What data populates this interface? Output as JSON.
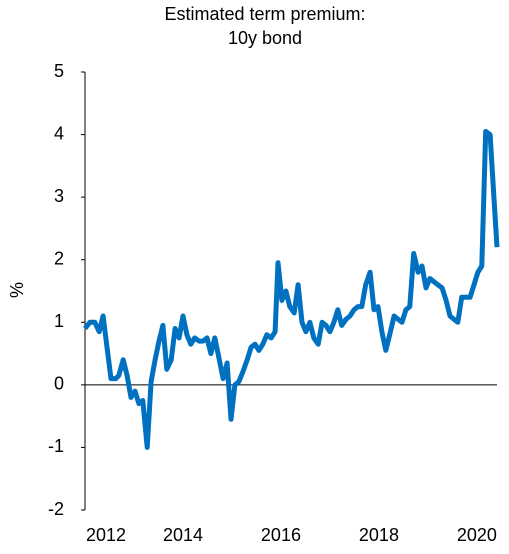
{
  "chart_data": {
    "type": "line",
    "title": [
      "Estimated term premium:",
      "10y bond"
    ],
    "y_label": "%",
    "x": [
      2012,
      2012.1,
      2012.2,
      2012.29,
      2012.37,
      2012.45,
      2012.53,
      2012.63,
      2012.69,
      2012.78,
      2012.86,
      2012.94,
      2013.02,
      2013.1,
      2013.18,
      2013.27,
      2013.35,
      2013.43,
      2013.51,
      2013.59,
      2013.67,
      2013.76,
      2013.84,
      2013.92,
      2014.0,
      2014.08,
      2014.16,
      2014.24,
      2014.33,
      2014.41,
      2014.49,
      2014.57,
      2014.65,
      2014.73,
      2014.82,
      2014.9,
      2014.98,
      2015.06,
      2015.14,
      2015.22,
      2015.31,
      2015.39,
      2015.47,
      2015.55,
      2015.63,
      2015.71,
      2015.8,
      2015.88,
      2015.94,
      2016.02,
      2016.1,
      2016.18,
      2016.27,
      2016.35,
      2016.43,
      2016.51,
      2016.59,
      2016.67,
      2016.76,
      2016.84,
      2016.92,
      2017.0,
      2017.08,
      2017.16,
      2017.24,
      2017.33,
      2017.41,
      2017.49,
      2017.57,
      2017.65,
      2017.73,
      2017.82,
      2017.9,
      2017.98,
      2018.06,
      2018.14,
      2018.22,
      2018.31,
      2018.39,
      2018.47,
      2018.55,
      2018.63,
      2018.71,
      2018.8,
      2018.88,
      2018.96,
      2019.04,
      2019.12,
      2019.2,
      2019.29,
      2019.37,
      2019.45,
      2019.53,
      2019.61,
      2019.69,
      2019.78,
      2019.86,
      2019.94,
      2020.02,
      2020.1,
      2020.18,
      2020.27,
      2020.35,
      2020.41
    ],
    "series": [
      {
        "name": "Estimated term premium",
        "color": "#0070c0",
        "values": [
          0.9,
          1.0,
          1.0,
          0.85,
          1.1,
          0.6,
          0.1,
          0.1,
          0.15,
          0.4,
          0.15,
          -0.2,
          -0.1,
          -0.3,
          -0.25,
          -1.0,
          0.05,
          0.4,
          0.7,
          0.95,
          0.25,
          0.4,
          0.9,
          0.75,
          1.1,
          0.8,
          0.65,
          0.75,
          0.7,
          0.7,
          0.75,
          0.5,
          0.75,
          0.45,
          0.1,
          0.35,
          -0.55,
          0,
          0.05,
          0.2,
          0.4,
          0.6,
          0.65,
          0.55,
          0.65,
          0.8,
          0.75,
          0.85,
          1.95,
          1.35,
          1.5,
          1.25,
          1.15,
          1.6,
          1.0,
          0.85,
          1.0,
          0.75,
          0.65,
          1.0,
          0.95,
          0.85,
          1.0,
          1.2,
          0.95,
          1.05,
          1.1,
          1.2,
          1.25,
          1.25,
          1.6,
          1.8,
          1.2,
          1.25,
          0.85,
          0.55,
          0.8,
          1.1,
          1.05,
          1.0,
          1.2,
          1.25,
          2.1,
          1.8,
          1.9,
          1.55,
          1.7,
          1.65,
          1.6,
          1.55,
          1.35,
          1.1,
          1.05,
          1.0,
          1.4,
          1.4,
          1.4,
          1.6,
          1.8,
          1.9,
          4.05,
          4.0,
          2.95,
          2.2
        ]
      }
    ],
    "xlim": [
      2012,
      2020.41
    ],
    "xticks": [
      2012,
      2014,
      2016,
      2018,
      2020
    ],
    "ylim": [
      -2,
      5
    ],
    "yticks": [
      -2,
      -1,
      0,
      1,
      2,
      3,
      4,
      5
    ]
  }
}
